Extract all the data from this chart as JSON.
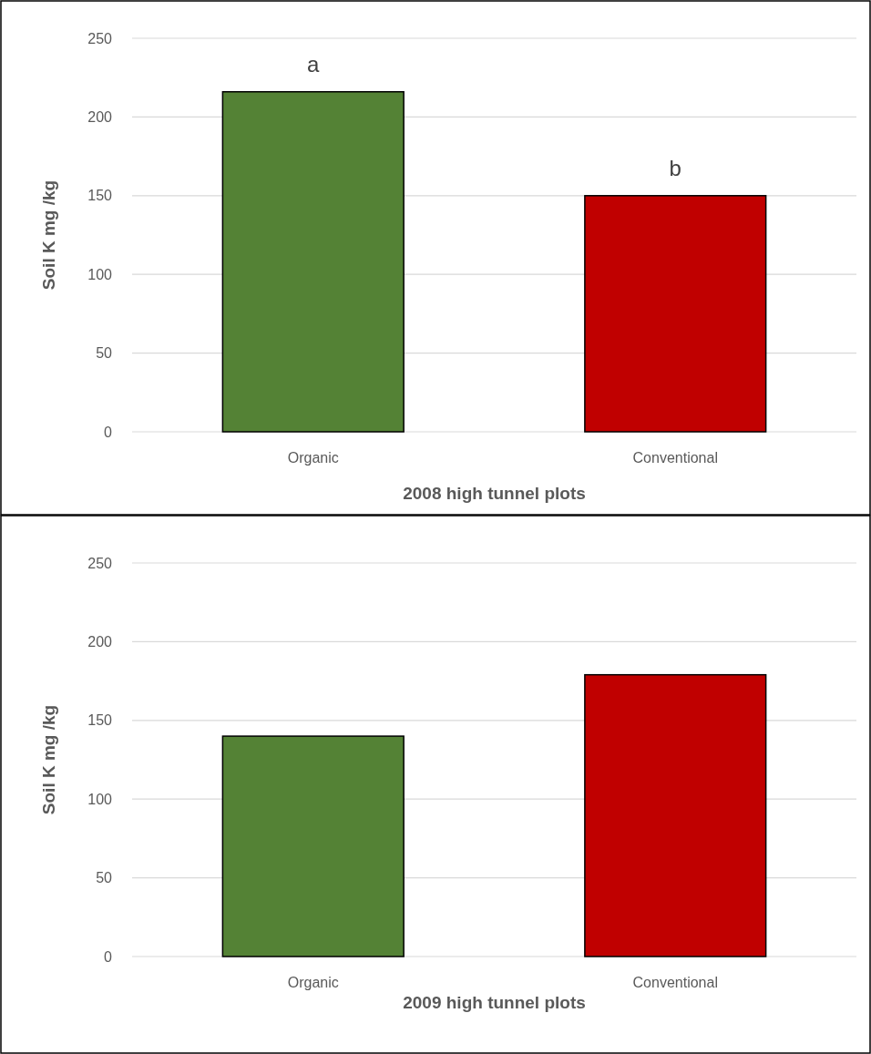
{
  "chart_data": [
    {
      "type": "bar",
      "categories": [
        "Organic",
        "Conventional"
      ],
      "values": [
        216,
        150
      ],
      "colors": [
        "#548235",
        "#c00000"
      ],
      "xlabel": "2008 high tunnel plots",
      "ylabel": "Soil K mg /kg",
      "ylim": [
        0,
        250
      ],
      "yticks": [
        0,
        50,
        100,
        150,
        200,
        250
      ],
      "grid": "y",
      "annotations": [
        {
          "text": "a",
          "x": "Organic",
          "y": 216
        },
        {
          "text": "b",
          "x": "Conventional",
          "y": 150
        }
      ]
    },
    {
      "type": "bar",
      "categories": [
        "Organic",
        "Conventional"
      ],
      "values": [
        140,
        179
      ],
      "colors": [
        "#548235",
        "#c00000"
      ],
      "xlabel": "2009 high tunnel plots",
      "ylabel": "Soil K mg /kg",
      "ylim": [
        0,
        250
      ],
      "yticks": [
        0,
        50,
        100,
        150,
        200,
        250
      ],
      "grid": "y"
    }
  ]
}
